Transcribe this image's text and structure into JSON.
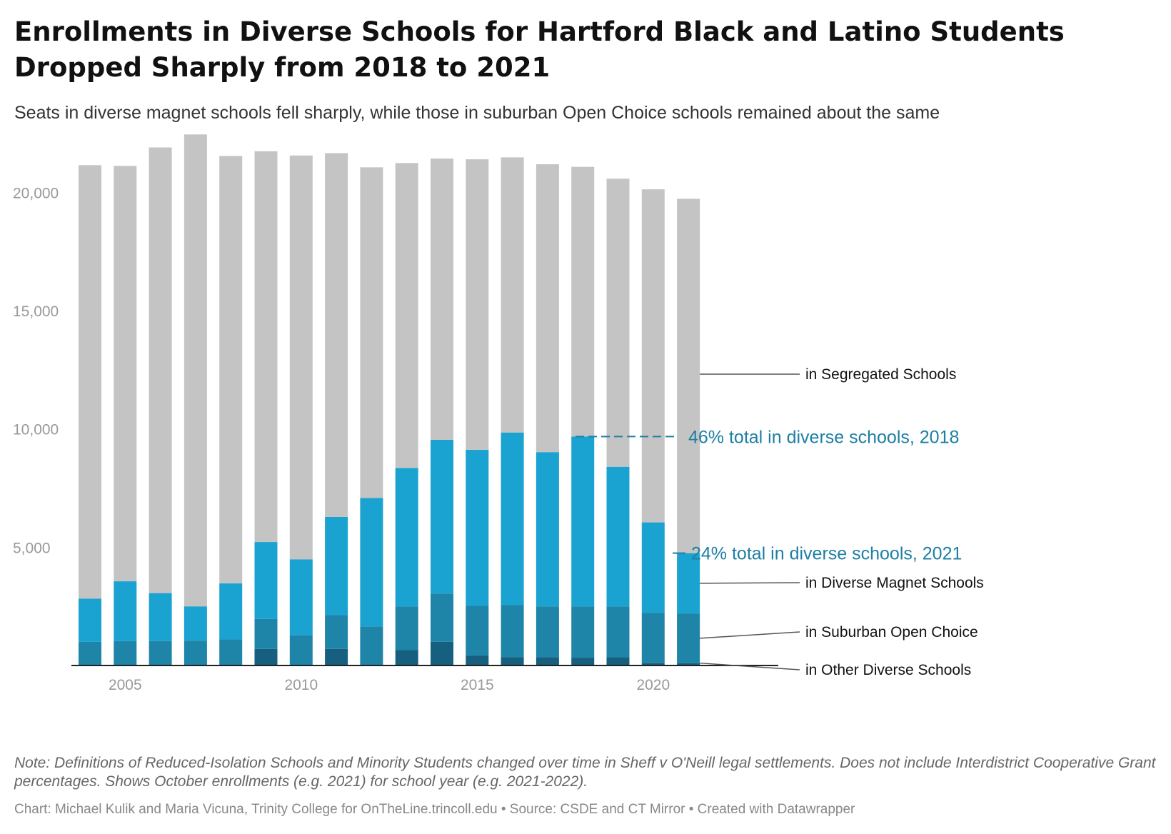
{
  "title": "Enrollments in Diverse Schools for Hartford Black and Latino Students Dropped Sharply from 2018 to 2021",
  "subtitle": "Seats in diverse magnet schools fell sharply, while those in suburban Open Choice schools remained about the same",
  "note": "Note: Definitions of Reduced-Isolation Schools and Minority Students changed over time in Sheff v O'Neill legal settlements. Does not include Interdistrict Cooperative Grant percentages. Shows October enrollments (e.g. 2021) for school year (e.g. 2021-2022).",
  "credits": "Chart: Michael Kulik and Maria Vicuna, Trinity College for OnTheLine.trincoll.edu • Source: CSDE and CT Mirror • Created with Datawrapper",
  "colors": {
    "segregated": "#c4c4c4",
    "magnet": "#1aa2d0",
    "open_choice": "#1e84a8",
    "other": "#175f7e",
    "annotation": "#1d7fa3",
    "axis_text": "#999999",
    "label_text": "#111111"
  },
  "chart_data": {
    "type": "bar",
    "stacked": true,
    "x": [
      2004,
      2005,
      2006,
      2007,
      2008,
      2009,
      2010,
      2011,
      2012,
      2013,
      2014,
      2015,
      2016,
      2017,
      2018,
      2019,
      2020,
      2021
    ],
    "x_ticks": [
      2005,
      2010,
      2015,
      2020
    ],
    "y_ticks": [
      5000,
      10000,
      15000,
      20000
    ],
    "ylim": [
      0,
      22700
    ],
    "grid": false,
    "series": [
      {
        "name": "in Other Diverse Schools",
        "key": "other",
        "values": [
          0,
          0,
          0,
          0,
          0,
          700,
          0,
          700,
          0,
          650,
          1000,
          420,
          350,
          350,
          330,
          350,
          100,
          100
        ]
      },
      {
        "name": "in Suburban Open Choice",
        "key": "open_choice",
        "values": [
          1000,
          1030,
          1030,
          1050,
          1100,
          1270,
          1270,
          1430,
          1650,
          1850,
          2040,
          2100,
          2200,
          2150,
          2170,
          2150,
          2130,
          2100
        ]
      },
      {
        "name": "in Diverse Magnet Schools",
        "key": "magnet",
        "values": [
          1830,
          2530,
          2030,
          1450,
          2370,
          3250,
          3220,
          4150,
          5430,
          5850,
          6500,
          6600,
          7300,
          6520,
          7180,
          5900,
          3820,
          2550
        ]
      },
      {
        "name": "in Segregated Schools",
        "key": "segregated",
        "values": [
          18320,
          17560,
          18840,
          19950,
          18070,
          16520,
          17070,
          15380,
          13980,
          12890,
          11890,
          12280,
          11630,
          12170,
          11400,
          12180,
          14080,
          14980
        ]
      }
    ],
    "annotations": [
      {
        "text": "46% total in diverse schools, 2018",
        "value": 9680
      },
      {
        "text": "24% total in diverse schools, 2021",
        "value": 4750
      }
    ]
  }
}
